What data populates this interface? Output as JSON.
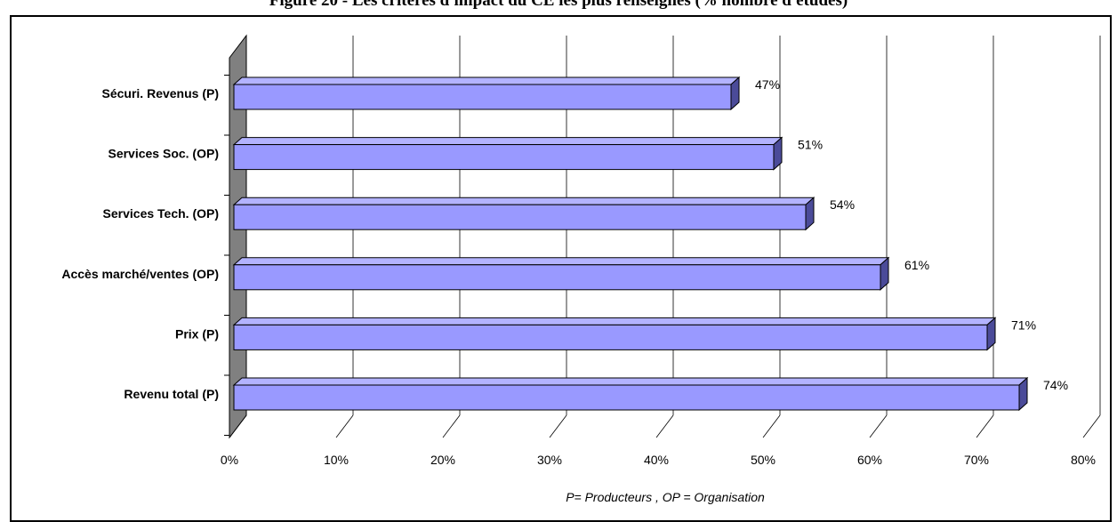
{
  "figure_title": "Figure 20 - Les critères d'impact du CE les plus renseignés (% nombre d'études)",
  "chart_data": {
    "type": "bar",
    "orientation": "horizontal",
    "categories": [
      "Sécuri. Revenus (P)",
      "Services Soc. (OP)",
      "Services Tech. (OP)",
      "Accès marché/ventes (OP)",
      "Prix (P)",
      "Revenu total (P)"
    ],
    "values": [
      47,
      51,
      54,
      61,
      71,
      74
    ],
    "value_labels": [
      "47%",
      "51%",
      "54%",
      "61%",
      "71%",
      "74%"
    ],
    "x_ticks": [
      "0%",
      "10%",
      "20%",
      "30%",
      "40%",
      "50%",
      "60%",
      "70%",
      "80%"
    ],
    "xlim": [
      0,
      80
    ],
    "grid": true,
    "style": "3d",
    "bar_color": "#9999ff",
    "wall_color": "#808080",
    "note": "P= Producteurs , OP = Organisation"
  }
}
